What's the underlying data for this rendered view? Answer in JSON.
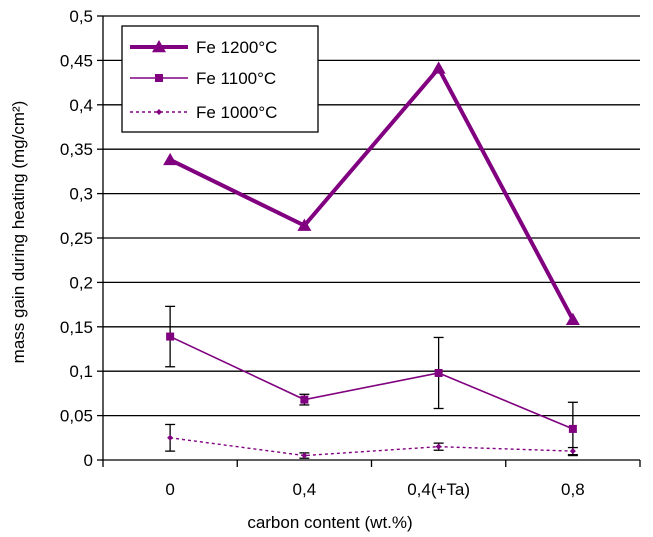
{
  "chart_data": {
    "type": "line",
    "title": "",
    "xlabel": "carbon content (wt.%)",
    "ylabel": "mass gain during heating (mg/cm²)",
    "categories": [
      "0",
      "0,4",
      "0,4(+Ta)",
      "0,8"
    ],
    "ylim": [
      0,
      0.5
    ],
    "yticks": [
      "0",
      "0,05",
      "0,1",
      "0,15",
      "0,2",
      "0,25",
      "0,3",
      "0,35",
      "0,4",
      "0,45",
      "0,5"
    ],
    "grid": true,
    "legend_position": "top-left",
    "series": [
      {
        "name": "Fe 1200°C",
        "values": [
          0.338,
          0.264,
          0.441,
          0.158
        ],
        "error": [
          null,
          null,
          null,
          null
        ],
        "color": "#800080",
        "line": "solid-thick",
        "marker": "triangle"
      },
      {
        "name": "Fe 1100°C",
        "values": [
          0.139,
          0.068,
          0.098,
          0.035
        ],
        "error": [
          0.034,
          0.006,
          0.04,
          0.03
        ],
        "color": "#800080",
        "line": "solid",
        "marker": "square"
      },
      {
        "name": "Fe 1000°C",
        "values": [
          0.025,
          0.005,
          0.015,
          0.01
        ],
        "error": [
          0.015,
          0.003,
          0.004,
          0.004
        ],
        "color": "#800080",
        "line": "dotted",
        "marker": "diamond"
      }
    ]
  }
}
